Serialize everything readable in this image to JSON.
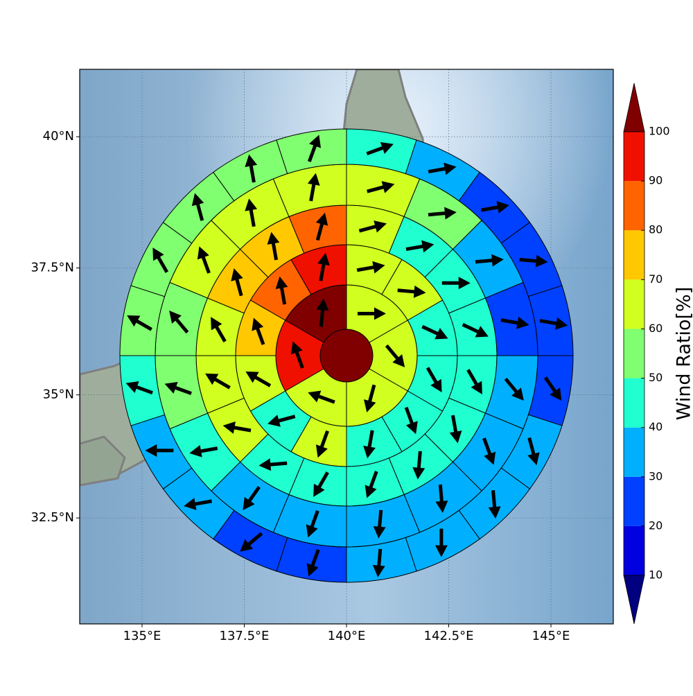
{
  "chart_data": {
    "type": "polar-sector-map",
    "projection": "mercator",
    "xlim": [
      133.475,
      146.525
    ],
    "ylim": [
      30.29,
      41.25
    ],
    "xticks": [
      {
        "value": 135,
        "label": "135°E"
      },
      {
        "value": 137.5,
        "label": "137.5°E"
      },
      {
        "value": 140,
        "label": "140°E"
      },
      {
        "value": 142.5,
        "label": "142.5°E"
      },
      {
        "value": 145,
        "label": "145°E"
      }
    ],
    "yticks": [
      {
        "value": 32.5,
        "label": "32.5°N"
      },
      {
        "value": 35,
        "label": "35°N"
      },
      {
        "value": 37.5,
        "label": "37.5°N"
      },
      {
        "value": 40,
        "label": "40°N"
      }
    ],
    "grid": true,
    "center_value": 100,
    "rings": [
      {
        "values": [
          60,
          60,
          60,
          60,
          90,
          100
        ],
        "directions": [
          90,
          140,
          195,
          290,
          340,
          5
        ]
      },
      {
        "values": [
          60,
          60,
          40,
          40,
          40,
          40,
          60,
          40,
          60,
          70,
          80,
          90
        ],
        "directions": [
          80,
          95,
          115,
          150,
          160,
          190,
          200,
          255,
          300,
          340,
          350,
          10
        ]
      },
      {
        "values": [
          60,
          40,
          40,
          40,
          40,
          40,
          40,
          40,
          40,
          40,
          60,
          60,
          60,
          70,
          70,
          80
        ],
        "directions": [
          75,
          80,
          90,
          115,
          150,
          170,
          185,
          200,
          210,
          265,
          280,
          300,
          330,
          345,
          350,
          15
        ]
      },
      {
        "values": [
          60,
          50,
          30,
          20,
          30,
          30,
          30,
          30,
          30,
          30,
          40,
          50,
          50,
          60,
          60,
          60
        ],
        "directions": [
          75,
          85,
          85,
          100,
          140,
          160,
          175,
          185,
          200,
          215,
          260,
          290,
          320,
          340,
          350,
          10
        ]
      },
      {
        "values": [
          40,
          30,
          20,
          20,
          20,
          20,
          30,
          30,
          30,
          30,
          20,
          20,
          30,
          30,
          40,
          50,
          50,
          50,
          50,
          50
        ],
        "directions": [
          70,
          80,
          80,
          95,
          100,
          145,
          165,
          175,
          180,
          185,
          200,
          230,
          260,
          270,
          290,
          300,
          330,
          345,
          350,
          20
        ]
      }
    ],
    "colorbar": {
      "label": "Wind Ratio[%]",
      "levels": [
        10,
        20,
        30,
        40,
        50,
        60,
        70,
        80,
        90,
        100
      ],
      "colors": [
        "#0000e0",
        "#0040ff",
        "#00b0ff",
        "#20ffd0",
        "#80ff70",
        "#d0ff20",
        "#ffc800",
        "#ff6400",
        "#f01000"
      ],
      "under_color": "#000080",
      "over_color": "#800000"
    }
  }
}
